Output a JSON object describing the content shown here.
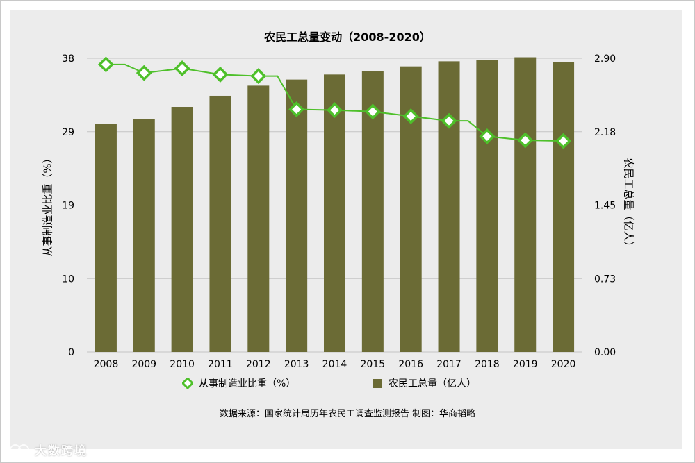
{
  "chart_data": {
    "type": "bar",
    "title": "农民工总量变动（2008-2020）",
    "categories": [
      "2008",
      "2009",
      "2010",
      "2011",
      "2012",
      "2013",
      "2014",
      "2015",
      "2016",
      "2017",
      "2018",
      "2019",
      "2020"
    ],
    "series": [
      {
        "name": "农民工总量（亿人）",
        "type": "bar",
        "axis": "right",
        "values": [
          2.25,
          2.3,
          2.42,
          2.53,
          2.63,
          2.69,
          2.74,
          2.77,
          2.82,
          2.87,
          2.88,
          2.91,
          2.86
        ],
        "color": "#6b6b35"
      },
      {
        "name": "从事制造业比重（%）",
        "type": "line",
        "axis": "left",
        "values": [
          37.2,
          36.1,
          36.7,
          35.9,
          35.7,
          31.4,
          31.3,
          31.1,
          30.5,
          29.9,
          27.9,
          27.4,
          27.3
        ],
        "color": "#4ec02a"
      }
    ],
    "y_left": {
      "label": "从事制造业比重（%）",
      "ticks": [
        "0",
        "10",
        "19",
        "29",
        "38"
      ],
      "range": [
        0,
        38
      ]
    },
    "y_right": {
      "label": "农民工总量（亿人）",
      "ticks": [
        "0.00",
        "0.73",
        "1.45",
        "2.18",
        "2.90"
      ],
      "range": [
        0,
        2.9
      ]
    },
    "grid": true,
    "legend": "bottom"
  },
  "legend": {
    "line_label": "从事制造业比重（%）",
    "bar_label": "农民工总量（亿人）"
  },
  "source_note": "数据来源：国家统计局历年农民工调查监测报告    制图：华商韬略",
  "watermark": "大数跨境"
}
